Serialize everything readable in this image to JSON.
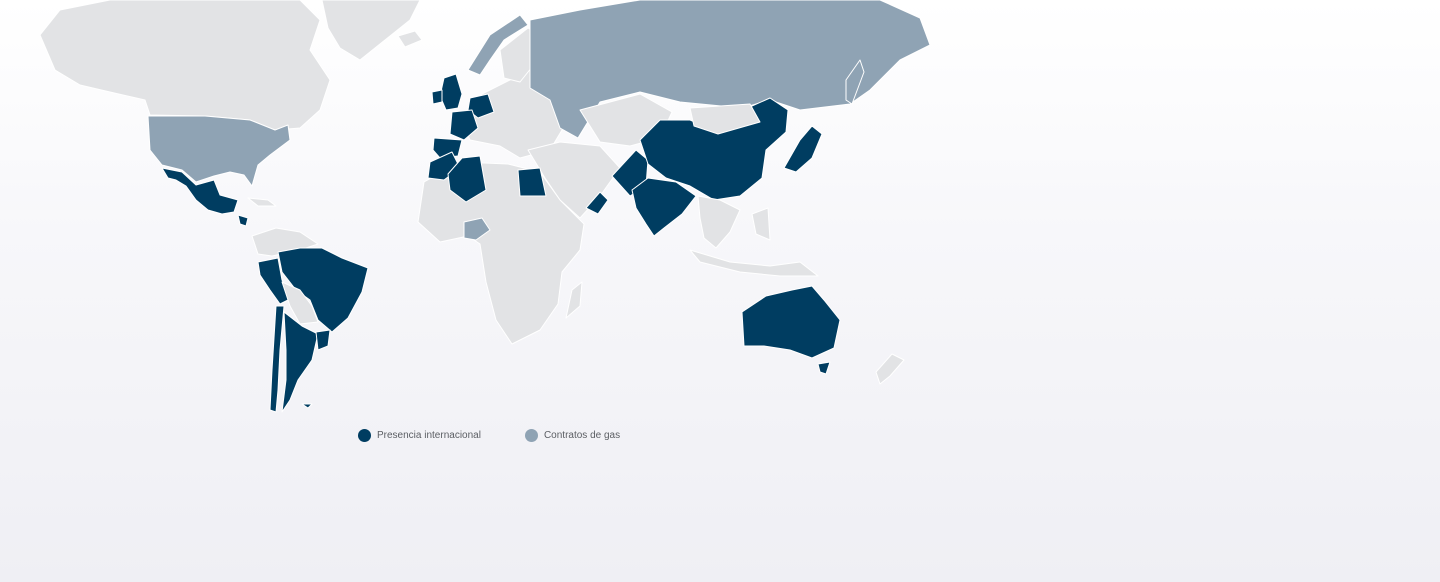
{
  "legend": {
    "items": [
      {
        "label": "Presencia internacional",
        "color": "#003d61"
      },
      {
        "label": "Contratos de gas",
        "color": "#8fa3b4"
      }
    ]
  },
  "colors": {
    "other_land": "#e2e3e5",
    "presence": "#003d61",
    "gas": "#8fa3b4"
  },
  "regions": {
    "presencia_internacional": [
      "UK",
      "Ireland",
      "Netherlands",
      "Germany",
      "France",
      "Spain",
      "Portugal",
      "Morocco",
      "Algeria",
      "Egypt",
      "Oman",
      "Pakistan",
      "India",
      "China",
      "Japan",
      "Mexico",
      "Central America",
      "Brazil",
      "Peru",
      "Bolivia",
      "Chile",
      "Argentina",
      "Uruguay",
      "Australia"
    ],
    "contratos_de_gas": [
      "USA",
      "Russia",
      "Norway",
      "Nigeria"
    ]
  }
}
